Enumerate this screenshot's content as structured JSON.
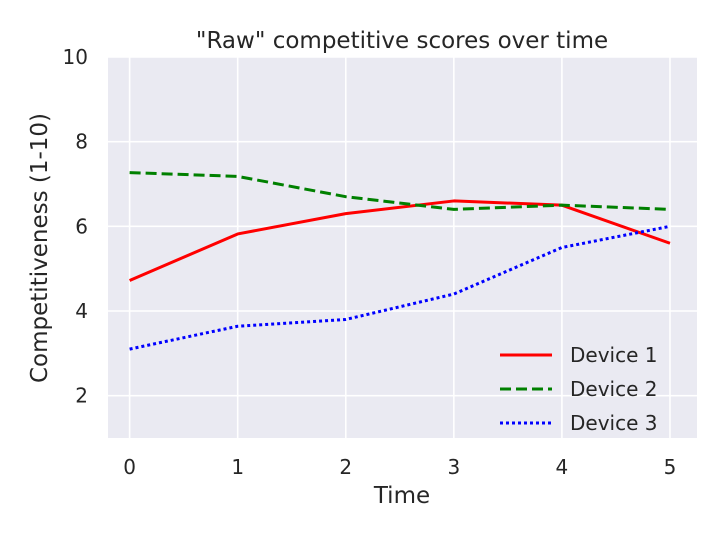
{
  "chart_data": {
    "type": "line",
    "title": "\"Raw\" competitive scores over time",
    "xlabel": "Time",
    "ylabel": "Competitiveness (1-10)",
    "x": [
      0,
      1,
      2,
      3,
      4,
      5
    ],
    "xlim": [
      -0.2,
      5.25
    ],
    "ylim": [
      1,
      10
    ],
    "xticks": [
      "0",
      "1",
      "2",
      "3",
      "4",
      "5"
    ],
    "yticks": [
      "2",
      "4",
      "6",
      "8",
      "10"
    ],
    "grid": true,
    "background": "#eaeaf2",
    "legend_position": "bottom-right",
    "series": [
      {
        "name": "Device 1",
        "color": "#ff0000",
        "style": "solid",
        "values": [
          4.72,
          5.82,
          6.3,
          6.6,
          6.5,
          5.6
        ]
      },
      {
        "name": "Device 2",
        "color": "#008000",
        "style": "dashed",
        "values": [
          7.27,
          7.18,
          6.7,
          6.4,
          6.5,
          6.4
        ]
      },
      {
        "name": "Device 3",
        "color": "#0000ff",
        "style": "dotted",
        "values": [
          3.1,
          3.64,
          3.8,
          4.4,
          5.5,
          6.0
        ]
      }
    ]
  }
}
